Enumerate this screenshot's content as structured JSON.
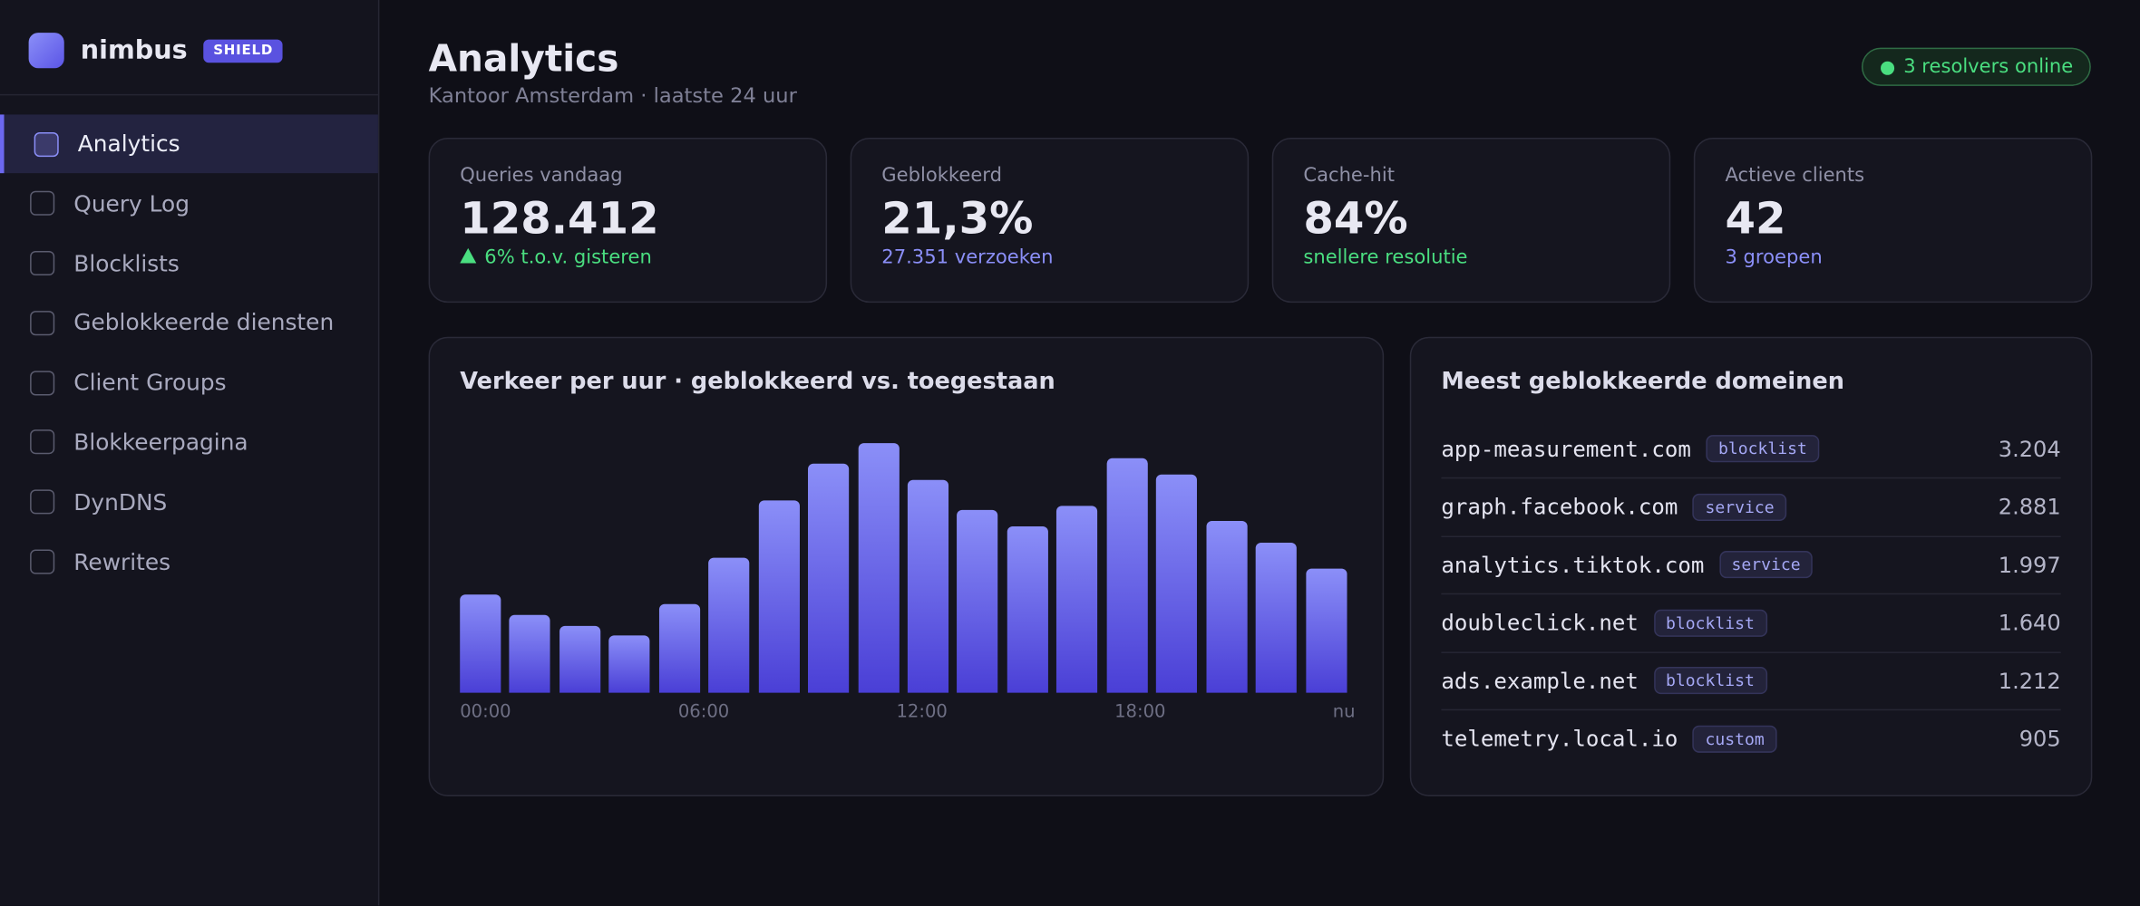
{
  "sidebar": {
    "brand": "nimbus",
    "badge": "SHIELD",
    "nav": [
      "Analytics",
      "Query Log",
      "Blocklists",
      "Geblokkeerde diensten",
      "Client Groups",
      "Blokkeerpagina",
      "DynDNS",
      "Rewrites"
    ]
  },
  "header": {
    "title": "Analytics",
    "subtitle": "Kantoor Amsterdam · laatste 24 uur",
    "status": "3 resolvers online"
  },
  "stats": [
    {
      "label": "Queries vandaag",
      "value": "128.412",
      "note": "6% t.o.v. gisteren",
      "tone": "up"
    },
    {
      "label": "Geblokkeerd",
      "value": "21,3%",
      "note": "27.351 verzoeken",
      "tone": "info"
    },
    {
      "label": "Cache-hit",
      "value": "84%",
      "note": "snellere resolutie",
      "tone": "good"
    },
    {
      "label": "Actieve clients",
      "value": "42",
      "note": "3 groepen",
      "tone": "info"
    }
  ],
  "chart": {
    "type": "bar",
    "title": "Verkeer per uur · geblokkeerd vs. toegestaan",
    "values": [
      72,
      57,
      49,
      42,
      65,
      99,
      141,
      168,
      183,
      156,
      134,
      122,
      137,
      172,
      160,
      126,
      110,
      91
    ],
    "xlabels": [
      "00:00",
      "06:00",
      "12:00",
      "18:00",
      "nu"
    ]
  },
  "domains": {
    "title": "Meest geblokkeerde domeinen",
    "rows": [
      {
        "domain": "app-measurement.com",
        "tag": "blocklist",
        "count": "3.204"
      },
      {
        "domain": "graph.facebook.com",
        "tag": "service",
        "count": "2.881"
      },
      {
        "domain": "analytics.tiktok.com",
        "tag": "service",
        "count": "1.997"
      },
      {
        "domain": "doubleclick.net",
        "tag": "blocklist",
        "count": "1.640"
      },
      {
        "domain": "ads.example.net",
        "tag": "blocklist",
        "count": "1.212"
      },
      {
        "domain": "telemetry.local.io",
        "tag": "custom",
        "count": "905"
      }
    ]
  }
}
